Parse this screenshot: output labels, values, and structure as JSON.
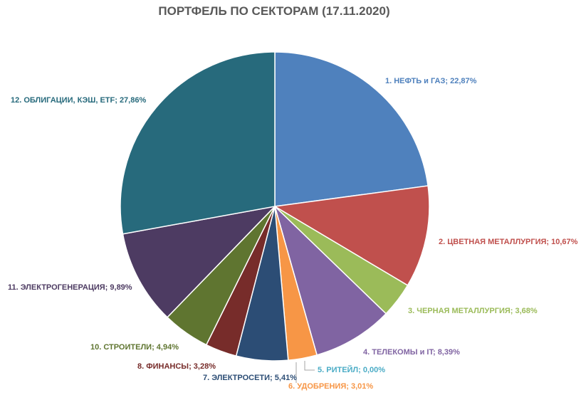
{
  "chart_data": {
    "type": "pie",
    "title": "ПОРТФЕЛЬ ПО СЕКТОРАМ (17.11.2020)",
    "slices": [
      {
        "label": "1. НЕФТЬ и ГАЗ; 22,87%",
        "value": 22.87,
        "color": "#4F81BD"
      },
      {
        "label": "2. ЦВЕТНАЯ МЕТАЛЛУРГИЯ; 10,67%",
        "value": 10.67,
        "color": "#C0504D"
      },
      {
        "label": "3. ЧЕРНАЯ МЕТАЛЛУРГИЯ; 3,68%",
        "value": 3.68,
        "color": "#9BBB59"
      },
      {
        "label": "4. ТЕЛЕКОМЫ и IT; 8,39%",
        "value": 8.39,
        "color": "#8064A2"
      },
      {
        "label": "5. РИТЕЙЛ; 0,00%",
        "value": 0.0,
        "color": "#4BACC6"
      },
      {
        "label": "6. УДОБРЕНИЯ; 3,01%",
        "value": 3.01,
        "color": "#F79646"
      },
      {
        "label": "7. ЭЛЕКТРОСЕТИ; 5,41%",
        "value": 5.41,
        "color": "#2C4D75"
      },
      {
        "label": "8. ФИНАНСЫ; 3,28%",
        "value": 3.28,
        "color": "#772C2A"
      },
      {
        "label": "10. СТРОИТЕЛИ; 4,94%",
        "value": 4.94,
        "color": "#5F7530"
      },
      {
        "label": "11. ЭЛЕКТРОГЕНЕРАЦИЯ; 9,89%",
        "value": 9.89,
        "color": "#4D3B62"
      },
      {
        "label": "12. ОБЛИГАЦИИ, КЭШ, ETF; 27,86%",
        "value": 27.86,
        "color": "#276A7C"
      }
    ],
    "legend": "none"
  }
}
